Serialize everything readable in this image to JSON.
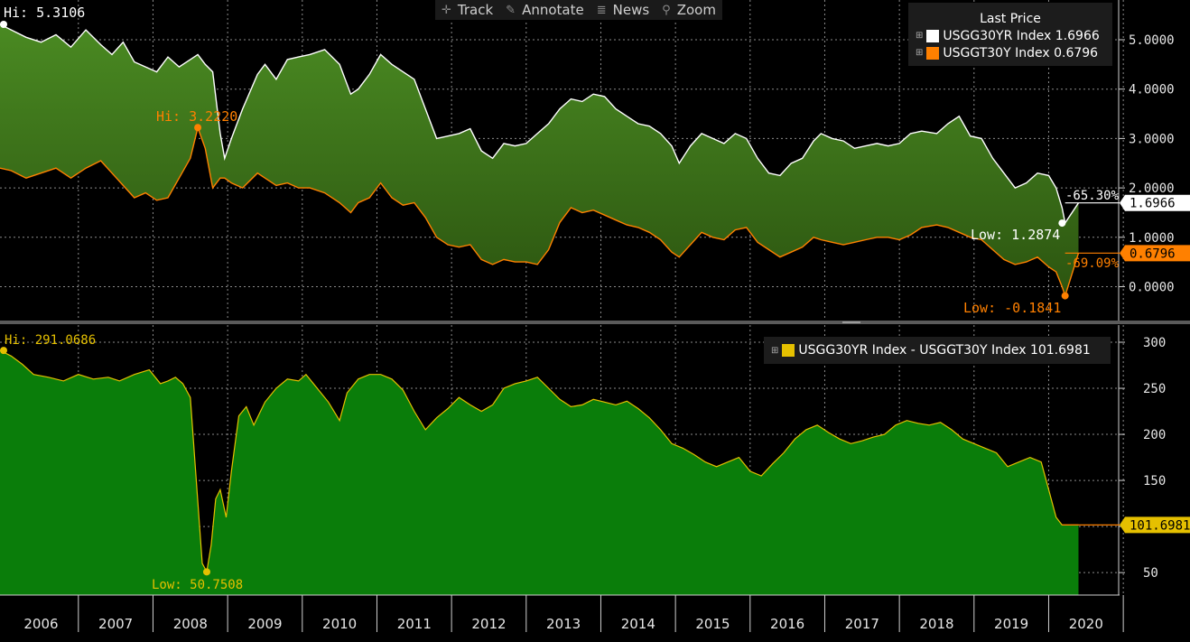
{
  "toolbar": {
    "track": "Track",
    "annotate": "Annotate",
    "news": "News",
    "zoom": "Zoom",
    "track_icon": "crosshair-icon",
    "annotate_icon": "pencil-icon",
    "news_icon": "news-lines-icon",
    "zoom_icon": "magnifier-icon"
  },
  "colors": {
    "background": "#000000",
    "upper_fill": "#3a6b16",
    "lower_fill": "#0a7d0a",
    "white_series": "#ffffff",
    "orange_series": "#ff8000",
    "yellow_series": "#e5c000"
  },
  "upper_legend": {
    "title": "Last Price",
    "entries": [
      {
        "name": "USGG30YR Index",
        "value": "1.6966",
        "color": "#ffffff"
      },
      {
        "name": "USGGT30Y Index",
        "value": "0.6796",
        "color": "#ff8000"
      }
    ]
  },
  "lower_legend": {
    "name": "USGG30YR Index - USGGT30Y Index",
    "value": "101.6981",
    "color": "#e5c000"
  },
  "chart_data": [
    {
      "type": "area",
      "ylim": [
        -0.6,
        5.9
      ],
      "yticks": [
        "5.0000",
        "4.0000",
        "3.0000",
        "2.0000",
        "1.0000",
        "0.0000"
      ],
      "yticks_values": [
        5,
        4,
        3,
        2,
        1,
        0
      ],
      "grid": true,
      "legend_position": "top-right",
      "series": [
        {
          "name": "USGG30YR Index",
          "last": "1.6966",
          "x": [
            2005.95,
            2006.1,
            2006.3,
            2006.5,
            2006.7,
            2006.9,
            2007.1,
            2007.3,
            2007.45,
            2007.6,
            2007.75,
            2007.9,
            2008.05,
            2008.2,
            2008.35,
            2008.5,
            2008.6,
            2008.7,
            2008.8,
            2008.9,
            2008.96,
            2009.05,
            2009.2,
            2009.4,
            2009.5,
            2009.65,
            2009.8,
            2009.95,
            2010.1,
            2010.3,
            2010.5,
            2010.65,
            2010.75,
            2010.9,
            2011.05,
            2011.2,
            2011.35,
            2011.5,
            2011.65,
            2011.8,
            2011.95,
            2012.1,
            2012.25,
            2012.4,
            2012.55,
            2012.7,
            2012.85,
            2013.0,
            2013.15,
            2013.3,
            2013.45,
            2013.6,
            2013.75,
            2013.9,
            2014.05,
            2014.2,
            2014.35,
            2014.5,
            2014.65,
            2014.8,
            2014.95,
            2015.05,
            2015.2,
            2015.35,
            2015.5,
            2015.65,
            2015.8,
            2015.95,
            2016.1,
            2016.25,
            2016.4,
            2016.55,
            2016.7,
            2016.85,
            2016.95,
            2017.1,
            2017.25,
            2017.4,
            2017.55,
            2017.7,
            2017.85,
            2018.0,
            2018.15,
            2018.3,
            2018.5,
            2018.65,
            2018.8,
            2018.95,
            2019.1,
            2019.25,
            2019.4,
            2019.55,
            2019.7,
            2019.85,
            2020.0,
            2020.1,
            2020.18,
            2020.22,
            2020.4
          ],
          "values": [
            5.31,
            5.2,
            5.05,
            4.95,
            5.1,
            4.85,
            5.2,
            4.9,
            4.7,
            4.95,
            4.55,
            4.45,
            4.35,
            4.65,
            4.45,
            4.6,
            4.7,
            4.5,
            4.35,
            3.1,
            2.6,
            3.0,
            3.6,
            4.3,
            4.5,
            4.2,
            4.6,
            4.65,
            4.7,
            4.8,
            4.5,
            3.9,
            4.0,
            4.3,
            4.7,
            4.5,
            4.35,
            4.2,
            3.6,
            3.0,
            3.05,
            3.1,
            3.2,
            2.75,
            2.6,
            2.9,
            2.85,
            2.9,
            3.1,
            3.3,
            3.6,
            3.8,
            3.75,
            3.9,
            3.85,
            3.6,
            3.45,
            3.3,
            3.25,
            3.1,
            2.85,
            2.5,
            2.85,
            3.1,
            3.0,
            2.9,
            3.1,
            3.0,
            2.6,
            2.3,
            2.25,
            2.5,
            2.6,
            2.95,
            3.1,
            3.0,
            2.95,
            2.8,
            2.85,
            2.9,
            2.85,
            2.9,
            3.1,
            3.15,
            3.1,
            3.3,
            3.45,
            3.05,
            3.0,
            2.6,
            2.3,
            2.0,
            2.1,
            2.3,
            2.25,
            2.0,
            1.6,
            1.29,
            1.6966
          ]
        },
        {
          "name": "USGGT30Y Index",
          "last": "0.6796",
          "x": [
            2005.95,
            2006.1,
            2006.3,
            2006.5,
            2006.7,
            2006.9,
            2007.1,
            2007.3,
            2007.45,
            2007.6,
            2007.75,
            2007.9,
            2008.05,
            2008.2,
            2008.35,
            2008.5,
            2008.6,
            2008.7,
            2008.8,
            2008.9,
            2008.96,
            2009.05,
            2009.2,
            2009.4,
            2009.5,
            2009.65,
            2009.8,
            2009.95,
            2010.1,
            2010.3,
            2010.5,
            2010.65,
            2010.75,
            2010.9,
            2011.05,
            2011.2,
            2011.35,
            2011.5,
            2011.65,
            2011.8,
            2011.95,
            2012.1,
            2012.25,
            2012.4,
            2012.55,
            2012.7,
            2012.85,
            2013.0,
            2013.15,
            2013.3,
            2013.45,
            2013.6,
            2013.75,
            2013.9,
            2014.05,
            2014.2,
            2014.35,
            2014.5,
            2014.65,
            2014.8,
            2014.95,
            2015.05,
            2015.2,
            2015.35,
            2015.5,
            2015.65,
            2015.8,
            2015.95,
            2016.1,
            2016.25,
            2016.4,
            2016.55,
            2016.7,
            2016.85,
            2016.95,
            2017.1,
            2017.25,
            2017.4,
            2017.55,
            2017.7,
            2017.85,
            2018.0,
            2018.15,
            2018.3,
            2018.5,
            2018.65,
            2018.8,
            2018.95,
            2019.1,
            2019.25,
            2019.4,
            2019.55,
            2019.7,
            2019.85,
            2020.0,
            2020.1,
            2020.18,
            2020.22,
            2020.4
          ],
          "values": [
            2.4,
            2.35,
            2.2,
            2.3,
            2.4,
            2.2,
            2.4,
            2.55,
            2.3,
            2.05,
            1.8,
            1.9,
            1.75,
            1.8,
            2.2,
            2.6,
            3.22,
            2.8,
            2.0,
            2.2,
            2.2,
            2.1,
            2.0,
            2.3,
            2.2,
            2.05,
            2.1,
            2.0,
            2.0,
            1.9,
            1.7,
            1.5,
            1.7,
            1.8,
            2.1,
            1.8,
            1.65,
            1.7,
            1.4,
            1.0,
            0.85,
            0.8,
            0.85,
            0.55,
            0.45,
            0.55,
            0.5,
            0.5,
            0.45,
            0.75,
            1.3,
            1.6,
            1.5,
            1.55,
            1.45,
            1.35,
            1.25,
            1.2,
            1.1,
            0.95,
            0.7,
            0.6,
            0.85,
            1.1,
            1.0,
            0.95,
            1.15,
            1.2,
            0.9,
            0.75,
            0.6,
            0.7,
            0.8,
            1.0,
            0.95,
            0.9,
            0.85,
            0.9,
            0.95,
            1.0,
            1.0,
            0.95,
            1.05,
            1.2,
            1.25,
            1.2,
            1.1,
            1.0,
            0.95,
            0.75,
            0.55,
            0.45,
            0.5,
            0.6,
            0.4,
            0.3,
            0.0,
            -0.1841,
            0.6796
          ]
        }
      ],
      "annotations": [
        {
          "text": "Hi: 5.3106",
          "x": 2005.95,
          "y": 5.3106,
          "series": "USGG30YR Index"
        },
        {
          "text": "Hi: 3.2220",
          "x": 2008.6,
          "y": 3.222,
          "series": "USGGT30Y Index"
        },
        {
          "text": "Low: 1.2874",
          "x": 2020.18,
          "y": 1.2874,
          "series": "USGG30YR Index"
        },
        {
          "text": "Low: -0.1841",
          "x": 2020.22,
          "y": -0.1841,
          "series": "USGGT30Y Index"
        },
        {
          "text": "-65.30%",
          "series": "USGG30YR Index"
        },
        {
          "text": "-69.09%",
          "series": "USGGT30Y Index"
        }
      ]
    },
    {
      "type": "area",
      "ylim": [
        5,
        315
      ],
      "yticks": [
        "300",
        "250",
        "200",
        "150",
        "100",
        "50"
      ],
      "yticks_values": [
        300,
        250,
        200,
        150,
        100,
        50
      ],
      "grid": true,
      "legend_position": "top-right",
      "series": [
        {
          "name": "USGG30YR Index - USGGT30Y Index",
          "last": "101.6981",
          "x": [
            2005.95,
            2006.1,
            2006.25,
            2006.4,
            2006.6,
            2006.8,
            2007.0,
            2007.2,
            2007.4,
            2007.55,
            2007.75,
            2007.95,
            2008.1,
            2008.2,
            2008.3,
            2008.4,
            2008.5,
            2008.58,
            2008.66,
            2008.72,
            2008.78,
            2008.84,
            2008.9,
            2008.98,
            2009.05,
            2009.15,
            2009.25,
            2009.35,
            2009.5,
            2009.65,
            2009.8,
            2009.95,
            2010.05,
            2010.2,
            2010.35,
            2010.5,
            2010.6,
            2010.75,
            2010.9,
            2011.05,
            2011.2,
            2011.35,
            2011.5,
            2011.65,
            2011.8,
            2011.95,
            2012.1,
            2012.25,
            2012.4,
            2012.55,
            2012.7,
            2012.85,
            2013.0,
            2013.15,
            2013.3,
            2013.45,
            2013.6,
            2013.75,
            2013.9,
            2014.05,
            2014.2,
            2014.35,
            2014.5,
            2014.65,
            2014.8,
            2014.95,
            2015.1,
            2015.25,
            2015.4,
            2015.55,
            2015.7,
            2015.85,
            2016.0,
            2016.15,
            2016.3,
            2016.45,
            2016.6,
            2016.75,
            2016.9,
            2017.05,
            2017.2,
            2017.35,
            2017.5,
            2017.65,
            2017.8,
            2017.95,
            2018.1,
            2018.25,
            2018.4,
            2018.55,
            2018.7,
            2018.85,
            2019.0,
            2019.15,
            2019.3,
            2019.45,
            2019.6,
            2019.75,
            2019.9,
            2020.0,
            2020.1,
            2020.18,
            2020.4
          ],
          "values": [
            291.07,
            285,
            276,
            265,
            262,
            258,
            265,
            260,
            262,
            258,
            265,
            270,
            255,
            258,
            262,
            255,
            240,
            150,
            60,
            51,
            80,
            130,
            140,
            110,
            160,
            220,
            230,
            210,
            235,
            250,
            260,
            258,
            265,
            250,
            235,
            215,
            245,
            260,
            265,
            265,
            260,
            248,
            225,
            205,
            218,
            228,
            240,
            232,
            225,
            232,
            250,
            255,
            258,
            262,
            250,
            238,
            230,
            232,
            238,
            235,
            232,
            236,
            228,
            218,
            205,
            190,
            185,
            178,
            170,
            165,
            170,
            175,
            160,
            155,
            168,
            180,
            195,
            205,
            210,
            202,
            195,
            190,
            193,
            197,
            200,
            210,
            215,
            212,
            210,
            213,
            205,
            195,
            190,
            185,
            180,
            165,
            170,
            175,
            170,
            140,
            110,
            101.6981,
            101.6981
          ]
        }
      ],
      "annotations": [
        {
          "text": "Hi: 291.0686",
          "x": 2005.95,
          "y": 291.0686
        },
        {
          "text": "Low: 50.7508",
          "x": 2008.72,
          "y": 50.7508
        }
      ]
    }
  ],
  "x_axis": {
    "labels": [
      "2006",
      "2007",
      "2008",
      "2009",
      "2010",
      "2011",
      "2012",
      "2013",
      "2014",
      "2015",
      "2016",
      "2017",
      "2018",
      "2019",
      "2020"
    ],
    "range": [
      2005.95,
      2020.95
    ]
  }
}
